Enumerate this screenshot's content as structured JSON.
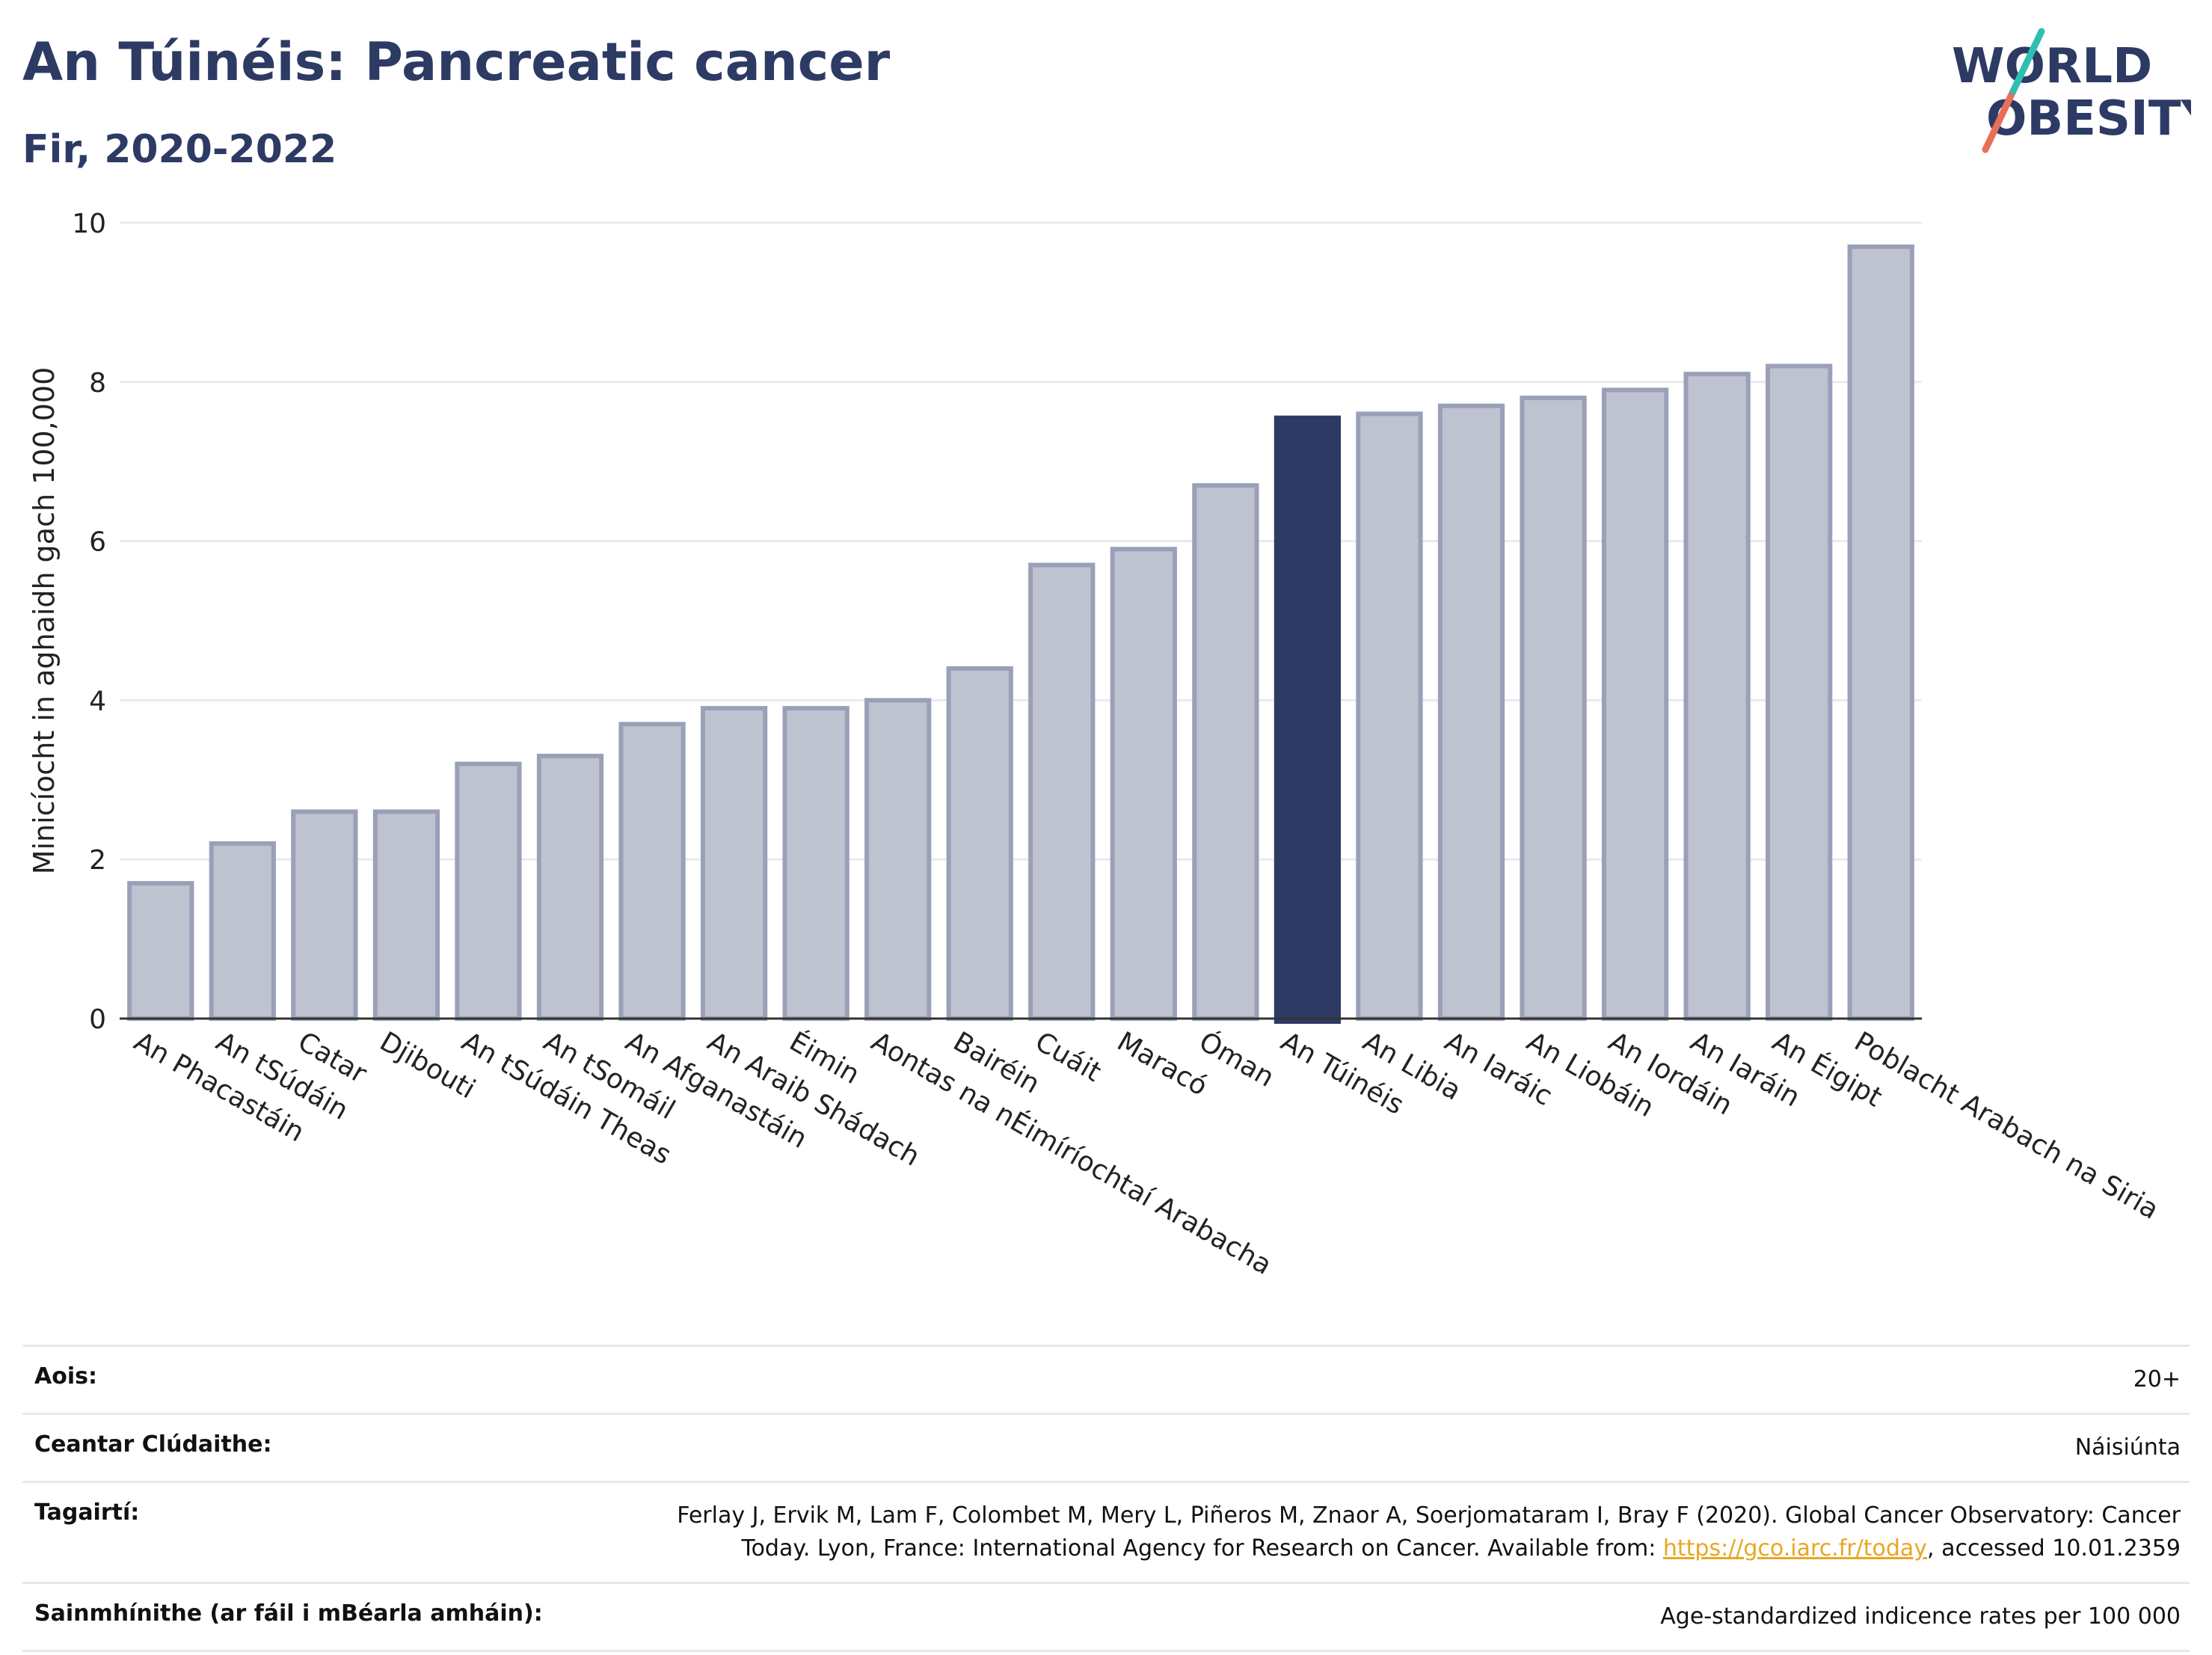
{
  "header": {
    "title": "An Túinéis: Pancreatic cancer",
    "subtitle": "Fir, 2020-2022",
    "logo_line1": "WORLD",
    "logo_line2": "OBESITY"
  },
  "chart_data": {
    "type": "bar",
    "ylabel": "Minicíocht in aghaidh gach 100,000",
    "xlabel": "",
    "ylim": [
      0,
      10
    ],
    "yticks": [
      0,
      2,
      4,
      6,
      8,
      10
    ],
    "grid": true,
    "highlight": "An Túinéis",
    "categories": [
      "An Phacastáin",
      "An tSúdáin",
      "Catar",
      "Djibouti",
      "An tSúdáin Theas",
      "An tSomáil",
      "An Afganastáin",
      "An Araib Shádach",
      "Éimin",
      "Aontas na nÉimíríochtaí Arabacha",
      "Bairéin",
      "Cuáit",
      "Maracó",
      "Óman",
      "An Túinéis",
      "An Libia",
      "An Iaráic",
      "An Liobáin",
      "An Iordáin",
      "An Iaráin",
      "An Éigipt",
      "Poblacht Arabach na Siria"
    ],
    "values": [
      1.7,
      2.2,
      2.6,
      2.6,
      3.2,
      3.3,
      3.7,
      3.9,
      3.9,
      4.0,
      4.4,
      5.7,
      5.9,
      6.7,
      7.55,
      7.6,
      7.7,
      7.8,
      7.9,
      8.1,
      8.2,
      9.7
    ],
    "colors": {
      "bar": "#bfc3d0",
      "bar_border": "#9aa0b8",
      "highlight": "#2d3a64"
    }
  },
  "meta": {
    "age_label": "Aois:",
    "age_value": "20+",
    "area_label": "Ceantar Clúdaithe:",
    "area_value": "Náisiúnta",
    "refs_label": "Tagairtí:",
    "refs_line1": "Ferlay J, Ervik M, Lam F, Colombet M, Mery L, Piñeros M, Znaor A, Soerjomataram I, Bray F (2020). Global Cancer Observatory: Cancer",
    "refs_line2_pre": "Today. Lyon, France: International Agency for Research on Cancer. Available from: ",
    "refs_link": "https://gco.iarc.fr/today",
    "refs_line2_post": ", accessed 10.01.2359",
    "defs_label": "Sainmhínithe (ar fáil i mBéarla amháin):",
    "defs_value": "Age-standardized indicence rates per 100 000"
  }
}
